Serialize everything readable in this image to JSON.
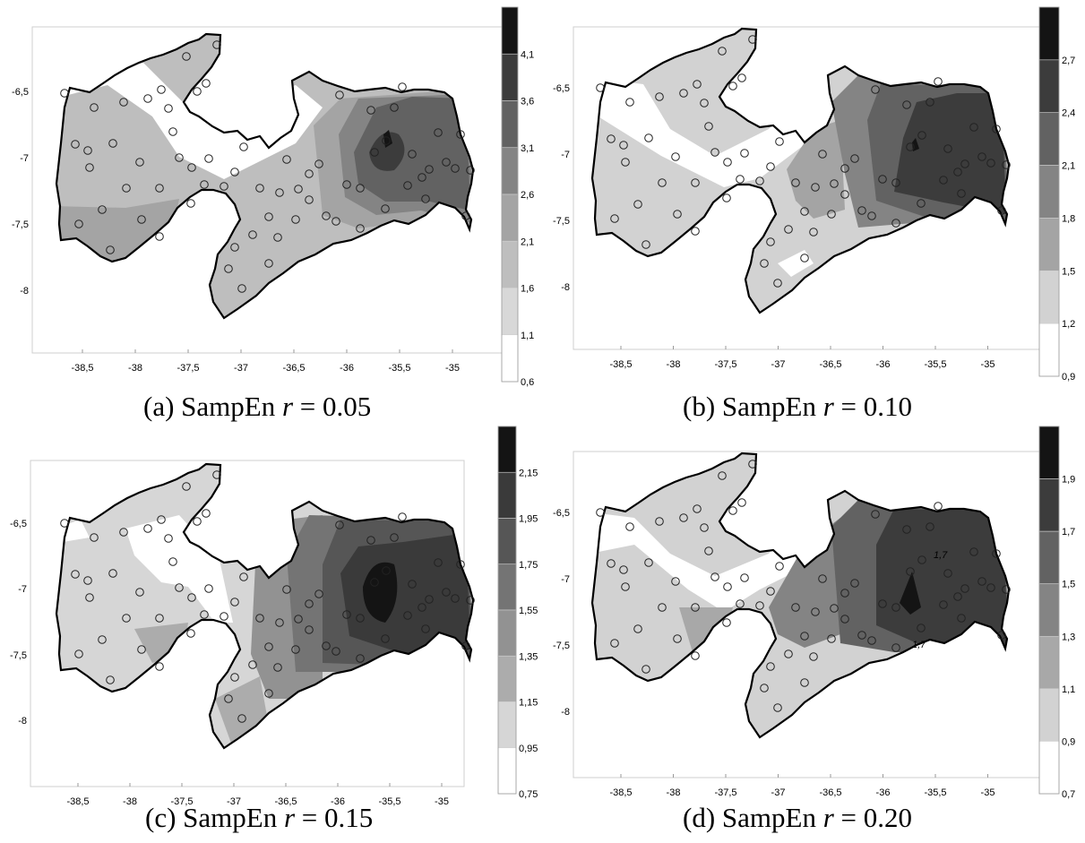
{
  "panels": [
    {
      "caption": {
        "label": "(a) SampEn",
        "variable": "r",
        "value": "= 0.05"
      },
      "x_ticks": [
        "-38,5",
        "-38",
        "-37,5",
        "-37",
        "-36,5",
        "-36",
        "-35,5",
        "-35"
      ],
      "y_ticks": [
        "-6,5",
        "-7",
        "-7,5",
        "-8"
      ],
      "legend_levels": [
        "4,1",
        "3,6",
        "3,1",
        "2,6",
        "2,1",
        "1,6",
        "1,1",
        "0,6"
      ],
      "legend_colors": [
        "#141414",
        "#3c3c3c",
        "#626262",
        "#848484",
        "#a4a4a4",
        "#bebebe",
        "#d8d8d8",
        "#ffffff"
      ]
    },
    {
      "caption": {
        "label": "(b) SampEn",
        "variable": "r",
        "value": "= 0.10"
      },
      "x_ticks": [
        "-38,5",
        "-38",
        "-37,5",
        "-37",
        "-36,5",
        "-36",
        "-35,5",
        "-35"
      ],
      "y_ticks": [
        "-6,5",
        "-7",
        "-7,5",
        "-8"
      ],
      "legend_levels": [
        "2,7",
        "2,4",
        "2,1",
        "1,8",
        "1,5",
        "1,2",
        "0,9"
      ],
      "legend_colors": [
        "#141414",
        "#3c3c3c",
        "#626262",
        "#848484",
        "#a4a4a4",
        "#d2d2d2",
        "#ffffff"
      ]
    },
    {
      "caption": {
        "label": "(c) SampEn",
        "variable": "r",
        "value": "= 0.15"
      },
      "x_ticks": [
        "-38,5",
        "-38",
        "-37,5",
        "-37",
        "-36,5",
        "-36",
        "-35,5",
        "-35"
      ],
      "y_ticks": [
        "-6,5",
        "-7",
        "-7,5",
        "-8"
      ],
      "legend_levels": [
        "2,15",
        "1,95",
        "1,75",
        "1,55",
        "1,35",
        "1,15",
        "0,95",
        "0,75"
      ],
      "legend_colors": [
        "#141414",
        "#3a3a3a",
        "#565656",
        "#747474",
        "#929292",
        "#acacac",
        "#d6d6d6",
        "#ffffff"
      ]
    },
    {
      "caption": {
        "label": "(d) SampEn",
        "variable": "r",
        "value": "= 0.20"
      },
      "x_ticks": [
        "-38,5",
        "-38",
        "-37,5",
        "-37",
        "-36,5",
        "-36",
        "-35,5",
        "-35"
      ],
      "y_ticks": [
        "-6,5",
        "-7",
        "-7,5",
        "-8"
      ],
      "legend_levels": [
        "1,9",
        "1,7",
        "1,5",
        "1,3",
        "1,1",
        "0,9",
        "0,7"
      ],
      "legend_colors": [
        "#141414",
        "#3c3c3c",
        "#626262",
        "#848484",
        "#a8a8a8",
        "#d2d2d2",
        "#ffffff"
      ],
      "contour_labels": [
        "1,7",
        "1,7"
      ]
    }
  ]
}
